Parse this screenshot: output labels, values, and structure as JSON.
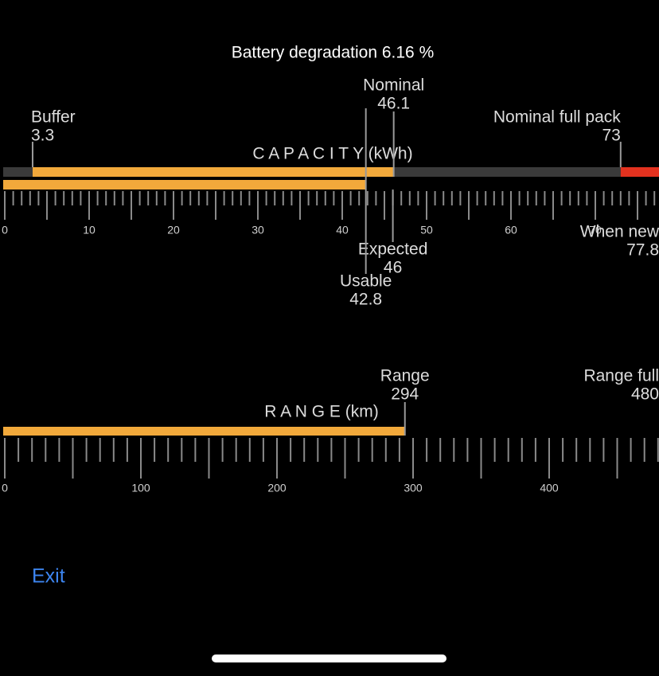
{
  "title": "Battery degradation 6.16 %",
  "capacity": {
    "axis_label": "C A P A C I T Y (kWh)",
    "ticks": [
      0,
      10,
      20,
      30,
      40,
      50,
      60,
      70
    ],
    "minor_step": 1,
    "major_step": 5,
    "buffer": {
      "label": "Buffer",
      "value": 3.3
    },
    "nominal": {
      "label": "Nominal",
      "value": 46.1
    },
    "nominal_full_pack": {
      "label": "Nominal full pack",
      "value": 73
    },
    "expected": {
      "label": "Expected",
      "value": 46
    },
    "usable": {
      "label": "Usable",
      "value": 42.8
    },
    "when_new": {
      "label": "When new",
      "value": 77.8
    }
  },
  "range": {
    "axis_label": "R A N G E (km)",
    "ticks": [
      0,
      100,
      200,
      300,
      400
    ],
    "minor_step": 10,
    "major_step": 50,
    "range": {
      "label": "Range",
      "value": 294
    },
    "range_full": {
      "label": "Range full",
      "value": 480
    }
  },
  "exit": "Exit"
}
